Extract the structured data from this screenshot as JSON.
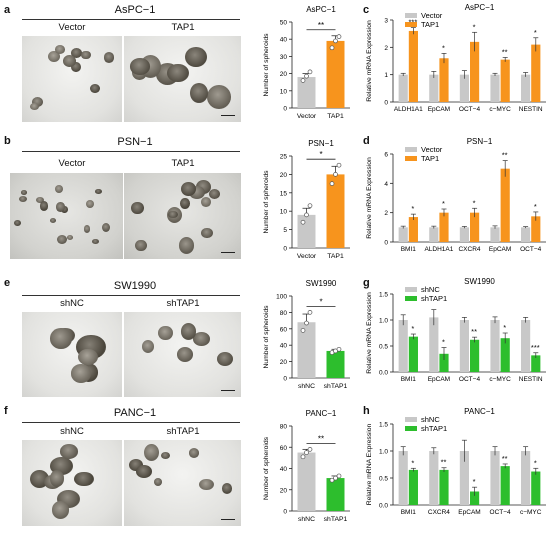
{
  "panel_labels": [
    "a",
    "b",
    "c",
    "d",
    "e",
    "f",
    "g",
    "h"
  ],
  "images": [
    {
      "id": "a",
      "cell_line": "AsPC−1",
      "left_label": "Vector",
      "right_label": "TAP1"
    },
    {
      "id": "b",
      "cell_line": "PSN−1",
      "left_label": "Vector",
      "right_label": "TAP1"
    },
    {
      "id": "e",
      "cell_line": "SW1990",
      "left_label": "shNC",
      "right_label": "shTAP1"
    },
    {
      "id": "f",
      "cell_line": "PANC−1",
      "left_label": "shNC",
      "right_label": "shTAP1"
    }
  ],
  "colors": {
    "vector": "#c8c8c8",
    "tap1": "#f7941d",
    "shnc": "#c8c8c8",
    "shtap1": "#2dbe2d"
  },
  "chart_data": [
    {
      "id": "a-spheroids",
      "type": "bar",
      "title": "AsPC−1",
      "categories": [
        "Vector",
        "TAP1"
      ],
      "values": [
        18,
        39
      ],
      "errors": [
        2,
        3
      ],
      "points": [
        [
          16,
          18.5,
          21
        ],
        [
          35,
          39,
          41.5
        ]
      ],
      "ylabel": "Number of spheroids",
      "ylim": [
        0,
        50
      ],
      "yticks": [
        0,
        10,
        20,
        30,
        40,
        50
      ],
      "significance": "**",
      "colors": [
        "#c8c8c8",
        "#f7941d"
      ]
    },
    {
      "id": "b-spheroids",
      "type": "bar",
      "title": "PSN−1",
      "categories": [
        "Vector",
        "TAP1"
      ],
      "values": [
        9,
        20
      ],
      "errors": [
        1.8,
        2.2
      ],
      "points": [
        [
          7,
          9,
          11.5
        ],
        [
          17.5,
          20,
          22.5
        ]
      ],
      "ylabel": "Number of spheroids",
      "ylim": [
        0,
        25
      ],
      "yticks": [
        0,
        5,
        10,
        15,
        20,
        25
      ],
      "significance": "*",
      "colors": [
        "#c8c8c8",
        "#f7941d"
      ]
    },
    {
      "id": "e-spheroids",
      "type": "bar",
      "title": "SW1990",
      "categories": [
        "shNC",
        "shTAP1"
      ],
      "values": [
        68,
        33
      ],
      "errors": [
        10,
        2
      ],
      "points": [
        [
          58,
          67,
          80
        ],
        [
          31,
          33,
          35
        ]
      ],
      "ylabel": "Number of spheroids",
      "ylim": [
        0,
        100
      ],
      "yticks": [
        0,
        20,
        40,
        60,
        80,
        100
      ],
      "significance": "*",
      "colors": [
        "#c8c8c8",
        "#2dbe2d"
      ]
    },
    {
      "id": "f-spheroids",
      "type": "bar",
      "title": "PANC−1",
      "categories": [
        "shNC",
        "shTAP1"
      ],
      "values": [
        55,
        31
      ],
      "errors": [
        3,
        2
      ],
      "points": [
        [
          51,
          55,
          58
        ],
        [
          29,
          31,
          33
        ]
      ],
      "ylabel": "Number of spheroids",
      "ylim": [
        0,
        80
      ],
      "yticks": [
        0,
        20,
        40,
        60,
        80
      ],
      "significance": "**",
      "colors": [
        "#c8c8c8",
        "#2dbe2d"
      ]
    },
    {
      "id": "c-mrna",
      "type": "bar",
      "title": "AsPC−1",
      "categories": [
        "ALDH1A1",
        "EpCAM",
        "OCT−4",
        "c−MYC",
        "NESTIN"
      ],
      "series": [
        {
          "name": "Vector",
          "values": [
            1,
            1,
            1,
            1,
            1
          ],
          "errors": [
            0.05,
            0.12,
            0.15,
            0.05,
            0.08
          ]
        },
        {
          "name": "TAP1",
          "values": [
            2.6,
            1.6,
            2.2,
            1.55,
            2.1
          ],
          "errors": [
            0.12,
            0.18,
            0.35,
            0.08,
            0.25
          ]
        }
      ],
      "ylabel": "Relative mRNA Expression",
      "ylim": [
        0,
        3
      ],
      "yticks": [
        0,
        1,
        2,
        3
      ],
      "significance": [
        "***",
        "*",
        "*",
        "**",
        "*"
      ],
      "colors": [
        "#c8c8c8",
        "#f7941d"
      ]
    },
    {
      "id": "d-mrna",
      "type": "bar",
      "title": "PSN−1",
      "categories": [
        "BMI1",
        "ALDH1A1",
        "CXCR4",
        "EpCAM",
        "OCT−4"
      ],
      "series": [
        {
          "name": "Vector",
          "values": [
            1,
            1,
            1,
            1,
            1
          ],
          "errors": [
            0.08,
            0.08,
            0.06,
            0.1,
            0.05
          ]
        },
        {
          "name": "TAP1",
          "values": [
            1.7,
            2.0,
            2.0,
            5.0,
            1.75
          ],
          "errors": [
            0.2,
            0.25,
            0.3,
            0.55,
            0.3
          ]
        }
      ],
      "ylabel": "Relative mRNA Expression",
      "ylim": [
        0,
        6
      ],
      "yticks": [
        0,
        2,
        4,
        6
      ],
      "significance": [
        "*",
        "*",
        "*",
        "**",
        "*"
      ],
      "colors": [
        "#c8c8c8",
        "#f7941d"
      ]
    },
    {
      "id": "g-mrna",
      "type": "bar",
      "title": "SW1990",
      "categories": [
        "BMI1",
        "EpCAM",
        "OCT−4",
        "c−MYC",
        "NESTIN"
      ],
      "series": [
        {
          "name": "shNC",
          "values": [
            1.0,
            1.05,
            1.0,
            1.0,
            1.0
          ],
          "errors": [
            0.1,
            0.15,
            0.05,
            0.06,
            0.05
          ]
        },
        {
          "name": "shTAP1",
          "values": [
            0.68,
            0.35,
            0.62,
            0.65,
            0.32
          ],
          "errors": [
            0.05,
            0.12,
            0.05,
            0.1,
            0.05
          ]
        }
      ],
      "ylabel": "Relative mRNA Expression",
      "ylim": [
        0,
        1.5
      ],
      "yticks": [
        0.0,
        0.5,
        1.0,
        1.5
      ],
      "significance": [
        "*",
        "*",
        "**",
        "*",
        "***"
      ],
      "colors": [
        "#c8c8c8",
        "#2dbe2d"
      ]
    },
    {
      "id": "h-mrna",
      "type": "bar",
      "title": "PANC−1",
      "categories": [
        "BMI1",
        "CXCR4",
        "EpCAM",
        "OCT−4",
        "c−MYC"
      ],
      "series": [
        {
          "name": "shNC",
          "values": [
            1.0,
            1.0,
            1.0,
            1.0,
            1.0
          ],
          "errors": [
            0.08,
            0.06,
            0.2,
            0.08,
            0.08
          ]
        },
        {
          "name": "shTAP1",
          "values": [
            0.65,
            0.65,
            0.25,
            0.72,
            0.62
          ],
          "errors": [
            0.03,
            0.04,
            0.08,
            0.04,
            0.06
          ]
        }
      ],
      "ylabel": "Relative mRNA Expression",
      "ylim": [
        0,
        1.5
      ],
      "yticks": [
        0.0,
        0.5,
        1.0,
        1.5
      ],
      "significance": [
        "*",
        "**",
        "*",
        "**",
        "*"
      ],
      "colors": [
        "#c8c8c8",
        "#2dbe2d"
      ]
    }
  ]
}
